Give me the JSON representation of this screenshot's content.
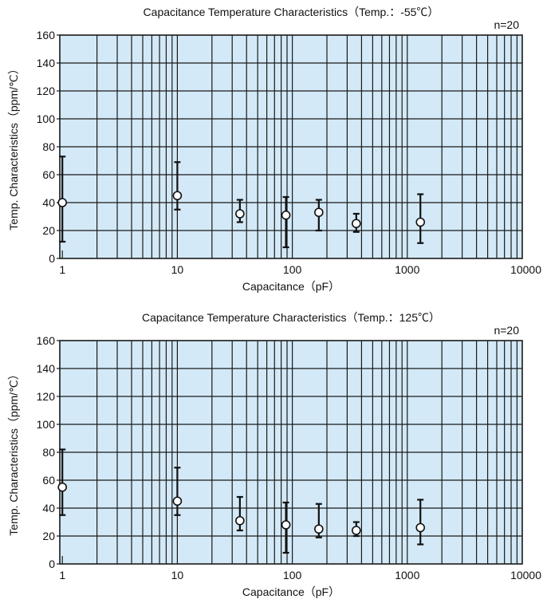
{
  "chart_data": [
    {
      "type": "scatter",
      "title": "Capacitance Temperature Characteristics（Temp.：-55℃）",
      "annotation": "n=20",
      "xlabel": "Capacitance（pF）",
      "ylabel": "Temp. Characteristics（ppm/℃）",
      "xscale": "log",
      "xlim": [
        0.95,
        10000
      ],
      "ylim": [
        0,
        160
      ],
      "xticks": [
        {
          "v": 1,
          "label": "1"
        },
        {
          "v": 10,
          "label": "10"
        },
        {
          "v": 100,
          "label": "100"
        },
        {
          "v": 1000,
          "label": "1000"
        },
        {
          "v": 10000,
          "label": "10000"
        }
      ],
      "yticks": [
        {
          "v": 0,
          "label": "0"
        },
        {
          "v": 20,
          "label": "20"
        },
        {
          "v": 40,
          "label": "40"
        },
        {
          "v": 60,
          "label": "60"
        },
        {
          "v": 80,
          "label": "80"
        },
        {
          "v": 100,
          "label": "100"
        },
        {
          "v": 120,
          "label": "120"
        },
        {
          "v": 140,
          "label": "140"
        },
        {
          "v": 160,
          "label": "160"
        }
      ],
      "grid": true,
      "background_color": "#d3e9f7",
      "grid_color": "#1a1a1a",
      "points": [
        {
          "x": 1,
          "y": 40,
          "ymin": 12,
          "ymax": 73
        },
        {
          "x": 10,
          "y": 45,
          "ymin": 35,
          "ymax": 69
        },
        {
          "x": 35,
          "y": 32,
          "ymin": 26,
          "ymax": 42
        },
        {
          "x": 88,
          "y": 31,
          "ymin": 8,
          "ymax": 44
        },
        {
          "x": 170,
          "y": 33,
          "ymin": 20,
          "ymax": 42
        },
        {
          "x": 360,
          "y": 25,
          "ymin": 19,
          "ymax": 32
        },
        {
          "x": 1300,
          "y": 26,
          "ymin": 11,
          "ymax": 46
        }
      ]
    },
    {
      "type": "scatter",
      "title": "Capacitance Temperature Characteristics（Temp.：125℃）",
      "annotation": "n=20",
      "xlabel": "Capacitance（pF）",
      "ylabel": "Temp. Characteristics（ppm/℃）",
      "xscale": "log",
      "xlim": [
        0.95,
        10000
      ],
      "ylim": [
        0,
        160
      ],
      "xticks": [
        {
          "v": 1,
          "label": "1"
        },
        {
          "v": 10,
          "label": "10"
        },
        {
          "v": 100,
          "label": "100"
        },
        {
          "v": 1000,
          "label": "1000"
        },
        {
          "v": 10000,
          "label": "10000"
        }
      ],
      "yticks": [
        {
          "v": 0,
          "label": "0"
        },
        {
          "v": 20,
          "label": "20"
        },
        {
          "v": 40,
          "label": "40"
        },
        {
          "v": 60,
          "label": "60"
        },
        {
          "v": 80,
          "label": "80"
        },
        {
          "v": 100,
          "label": "100"
        },
        {
          "v": 120,
          "label": "120"
        },
        {
          "v": 140,
          "label": "140"
        },
        {
          "v": 160,
          "label": "160"
        }
      ],
      "grid": true,
      "background_color": "#d3e9f7",
      "grid_color": "#1a1a1a",
      "points": [
        {
          "x": 1,
          "y": 55,
          "ymin": 35,
          "ymax": 82
        },
        {
          "x": 10,
          "y": 45,
          "ymin": 35,
          "ymax": 69
        },
        {
          "x": 35,
          "y": 31,
          "ymin": 24,
          "ymax": 48
        },
        {
          "x": 88,
          "y": 28,
          "ymin": 8,
          "ymax": 44
        },
        {
          "x": 170,
          "y": 25,
          "ymin": 19,
          "ymax": 43
        },
        {
          "x": 360,
          "y": 24,
          "ymin": 20,
          "ymax": 30
        },
        {
          "x": 1300,
          "y": 26,
          "ymin": 14,
          "ymax": 46
        }
      ]
    }
  ]
}
